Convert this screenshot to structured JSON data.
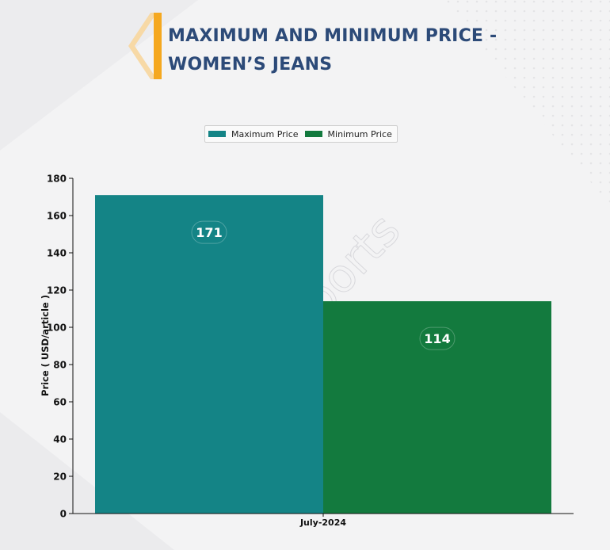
{
  "header": {
    "title_line1": "MAXIMUM AND MINIMUM PRICE -",
    "title_line2": "WOMEN’S JEANS"
  },
  "watermark": "DNJ Reports",
  "colors": {
    "title": "#2c4a78",
    "accent_orange": "#f5a81f",
    "max_series": "#148486",
    "min_series": "#137a3e"
  },
  "chart_data": {
    "type": "bar",
    "title": "MAXIMUM AND MINIMUM PRICE - WOMEN’S JEANS",
    "categories": [
      "July-2024"
    ],
    "series": [
      {
        "name": "Maximum Price",
        "values": [
          171
        ],
        "color": "#148486"
      },
      {
        "name": "Minimum Price",
        "values": [
          114
        ],
        "color": "#137a3e"
      }
    ],
    "xlabel": "",
    "ylabel": "Price ( USD/article )",
    "ylim": [
      0,
      180
    ],
    "yticks": [
      0,
      20,
      40,
      60,
      80,
      100,
      120,
      140,
      160,
      180
    ],
    "legend": "top-center",
    "grid": false
  }
}
